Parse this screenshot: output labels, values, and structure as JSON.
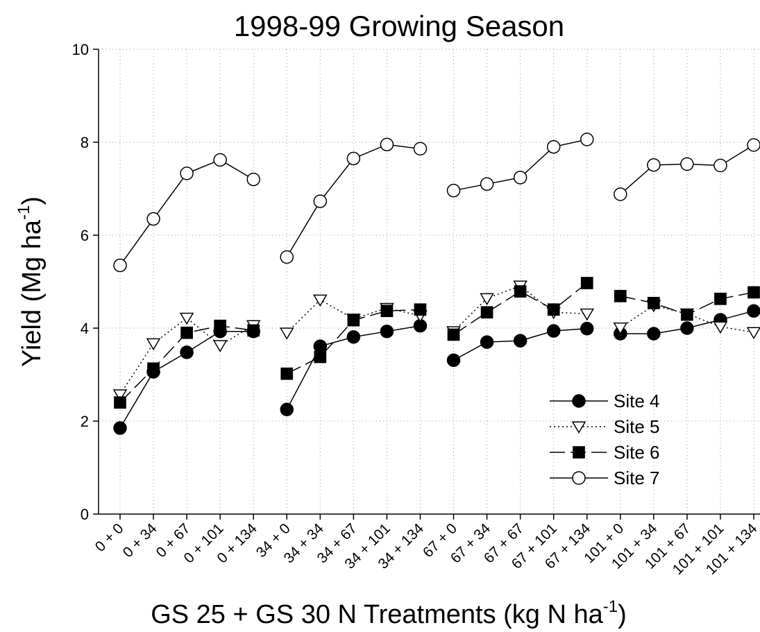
{
  "chart_data": {
    "type": "line",
    "title": "1998-99 Growing Season",
    "x_label": {
      "text": "GS 25 + GS 30 N Treatments (kg N ha",
      "sup": "-1",
      "tail": ")"
    },
    "y_label": {
      "text": "Yield (Mg ha",
      "sup": "-1",
      "tail": ")"
    },
    "categories": [
      "0 + 0",
      "0 + 34",
      "0 + 67",
      "0 + 101",
      "0 + 134",
      "34 + 0",
      "34 + 34",
      "34 + 67",
      "34 + 101",
      "34 + 134",
      "67 + 0",
      "67 + 34",
      "67 + 67",
      "67 + 101",
      "67 + 134",
      "101 + 0",
      "101 + 34",
      "101 + 67",
      "101 + 101",
      "101 + 134"
    ],
    "segment_size": 5,
    "series": [
      {
        "name": "Site 4",
        "color": "#000000",
        "marker": "circle",
        "marker_fill": "#000000",
        "dash": "solid",
        "values": [
          1.85,
          3.06,
          3.48,
          3.93,
          3.93,
          2.25,
          3.61,
          3.81,
          3.93,
          4.05,
          3.31,
          3.7,
          3.73,
          3.94,
          3.99,
          3.88,
          3.88,
          4.0,
          4.18,
          4.37
        ]
      },
      {
        "name": "Site 5",
        "color": "#000000",
        "marker": "triangle-down",
        "marker_fill": "#ffffff",
        "dash": "dotted",
        "values": [
          2.57,
          3.67,
          4.22,
          3.63,
          4.06,
          3.9,
          4.61,
          4.2,
          4.43,
          4.27,
          3.93,
          4.64,
          4.91,
          4.34,
          4.31,
          4.01,
          4.49,
          4.31,
          4.03,
          3.91
        ]
      },
      {
        "name": "Site 6",
        "color": "#000000",
        "marker": "square",
        "marker_fill": "#000000",
        "dash": "dashed",
        "values": [
          2.4,
          3.13,
          3.9,
          4.05,
          3.95,
          3.02,
          3.38,
          4.17,
          4.37,
          4.4,
          3.86,
          4.34,
          4.79,
          4.4,
          4.97,
          4.69,
          4.54,
          4.29,
          4.63,
          4.77
        ]
      },
      {
        "name": "Site 7",
        "color": "#000000",
        "marker": "circle",
        "marker_fill": "#ffffff",
        "dash": "solid",
        "values": [
          5.35,
          6.35,
          7.33,
          7.62,
          7.2,
          5.53,
          6.73,
          7.65,
          7.95,
          7.86,
          6.96,
          7.1,
          7.24,
          7.9,
          8.06,
          6.88,
          7.51,
          7.53,
          7.5,
          7.94
        ]
      }
    ],
    "ylim": [
      0,
      10
    ],
    "yticks": [
      0,
      2,
      4,
      6,
      8,
      10
    ],
    "grid": true,
    "legend": "lower right"
  }
}
